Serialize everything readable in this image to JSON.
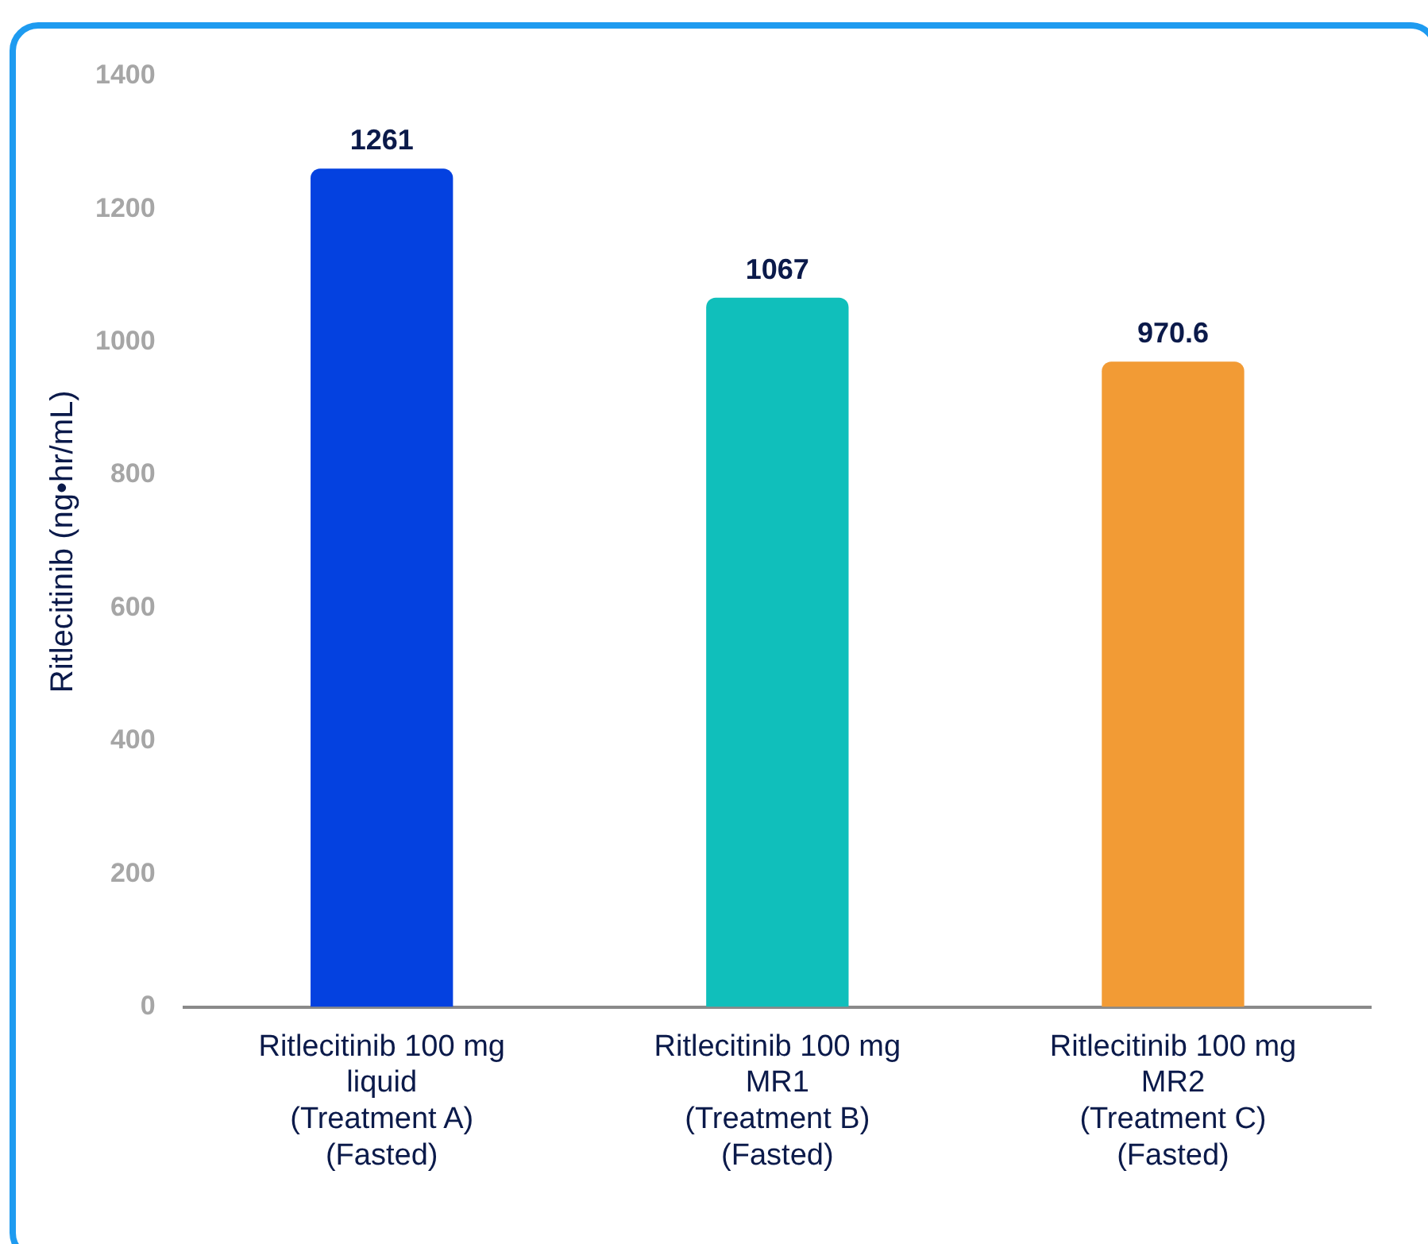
{
  "chart_data": {
    "type": "bar",
    "ylabel": "Ritlecitinib (ng•hr/mL)",
    "categories": [
      "Ritlecitinib 100 mg\nliquid\n(Treatment A)\n(Fasted)",
      "Ritlecitinib 100 mg\nMR1\n(Treatment B)\n(Fasted)",
      "Ritlecitinib 100 mg\nMR2\n(Treatment C)\n(Fasted)"
    ],
    "values": [
      1261,
      1067,
      970.6
    ],
    "colors": [
      "#0441e0",
      "#10bfbb",
      "#f29b35"
    ],
    "ylim": [
      0,
      1400
    ],
    "yticks": [
      0,
      200,
      400,
      600,
      800,
      1000,
      1200,
      1400
    ],
    "grid": false,
    "legend": false,
    "data_labels": true
  }
}
